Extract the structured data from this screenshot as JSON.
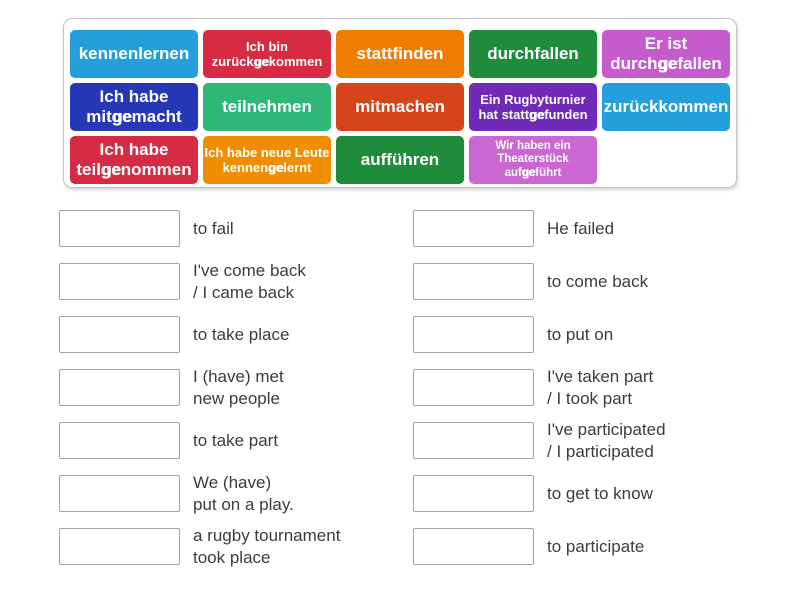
{
  "activity": {
    "type_label": "match-up",
    "panel_border_color": "#c4c4c4",
    "answer_text_color": "#3c3c3c",
    "drop_box_border_color": "#a3a3a3"
  },
  "tiles": [
    {
      "name": "kennenlernen",
      "color": "#249fdc",
      "size": "md",
      "lines": [
        [
          {
            "t": "kennenlernen"
          }
        ]
      ]
    },
    {
      "name": "ich-bin-zurueckgekommen",
      "color": "#d62b42",
      "size": "sm",
      "lines": [
        [
          {
            "t": "Ich bin"
          }
        ],
        [
          {
            "t": "zurück"
          },
          {
            "t": "ge",
            "b": true
          },
          {
            "t": "kommen"
          }
        ]
      ]
    },
    {
      "name": "stattfinden",
      "color": "#ef7d00",
      "size": "md",
      "lines": [
        [
          {
            "t": "stattfinden"
          }
        ]
      ]
    },
    {
      "name": "durchfallen",
      "color": "#1f8c3c",
      "size": "md",
      "lines": [
        [
          {
            "t": "durchfallen"
          }
        ]
      ]
    },
    {
      "name": "er-ist-durchgefallen",
      "color": "#c65bcd",
      "size": "md",
      "lines": [
        [
          {
            "t": "Er ist"
          }
        ],
        [
          {
            "t": "durch"
          },
          {
            "t": "ge",
            "b": true
          },
          {
            "t": "fallen"
          }
        ]
      ]
    },
    {
      "name": "ich-habe-mitgemacht",
      "color": "#2638b6",
      "size": "md",
      "lines": [
        [
          {
            "t": "Ich habe"
          }
        ],
        [
          {
            "t": "mit"
          },
          {
            "t": "ge",
            "b": true
          },
          {
            "t": "macht"
          }
        ]
      ]
    },
    {
      "name": "teilnehmen",
      "color": "#2eb878",
      "size": "md",
      "lines": [
        [
          {
            "t": "teilnehmen"
          }
        ]
      ]
    },
    {
      "name": "mitmachen",
      "color": "#d5441a",
      "size": "md",
      "lines": [
        [
          {
            "t": "mitmachen"
          }
        ]
      ]
    },
    {
      "name": "ein-rugbyturnier-hat-stattgefunden",
      "color": "#6f2ab8",
      "size": "sm",
      "lines": [
        [
          {
            "t": "Ein Rugbyturnier"
          }
        ],
        [
          {
            "t": "hat statt"
          },
          {
            "t": "ge",
            "b": true
          },
          {
            "t": "funden"
          }
        ]
      ]
    },
    {
      "name": "zurueckkommen",
      "color": "#249fdc",
      "size": "md",
      "lines": [
        [
          {
            "t": "zurückkommen"
          }
        ]
      ]
    },
    {
      "name": "ich-habe-teilgenommen",
      "color": "#d62b42",
      "size": "md",
      "lines": [
        [
          {
            "t": "Ich habe"
          }
        ],
        [
          {
            "t": "teil"
          },
          {
            "t": "ge",
            "b": true
          },
          {
            "t": "nommen"
          }
        ]
      ]
    },
    {
      "name": "ich-habe-neue-leute-kennengelernt",
      "color": "#f18d00",
      "size": "sm",
      "lines": [
        [
          {
            "t": "Ich habe neue Leute"
          }
        ],
        [
          {
            "t": "kennen"
          },
          {
            "t": "ge",
            "b": true
          },
          {
            "t": "lernt"
          }
        ]
      ]
    },
    {
      "name": "auffuehren",
      "color": "#1f8c3c",
      "size": "md",
      "lines": [
        [
          {
            "t": "aufführen"
          }
        ]
      ]
    },
    {
      "name": "wir-haben-ein-theaterstueck-aufgefuehrt",
      "color": "#ca67d2",
      "size": "xs",
      "lines": [
        [
          {
            "t": "Wir haben ein"
          }
        ],
        [
          {
            "t": "Theaterstück"
          }
        ],
        [
          {
            "t": "auf"
          },
          {
            "t": "ge",
            "b": true
          },
          {
            "t": "führt"
          }
        ]
      ]
    }
  ],
  "tile_rows": [
    [
      0,
      1,
      2,
      3,
      4
    ],
    [
      5,
      6,
      7,
      8,
      9
    ],
    [
      10,
      11,
      12,
      13
    ]
  ],
  "answers": {
    "left": [
      {
        "lines": [
          "to fail"
        ]
      },
      {
        "lines": [
          "I've come back",
          "/ I came back"
        ]
      },
      {
        "lines": [
          "to take place"
        ]
      },
      {
        "lines": [
          "I (have) met",
          "new people"
        ]
      },
      {
        "lines": [
          "to take part"
        ]
      },
      {
        "lines": [
          "We (have)",
          "put on a play."
        ]
      },
      {
        "lines": [
          "a rugby tournament",
          "took place"
        ]
      }
    ],
    "right": [
      {
        "lines": [
          "He failed"
        ]
      },
      {
        "lines": [
          "to come back"
        ]
      },
      {
        "lines": [
          "to put on"
        ]
      },
      {
        "lines": [
          "I've taken part",
          "/ I took part"
        ]
      },
      {
        "lines": [
          "I've participated",
          "/ I participated"
        ]
      },
      {
        "lines": [
          "to get to know"
        ]
      },
      {
        "lines": [
          "to participate"
        ]
      }
    ]
  }
}
